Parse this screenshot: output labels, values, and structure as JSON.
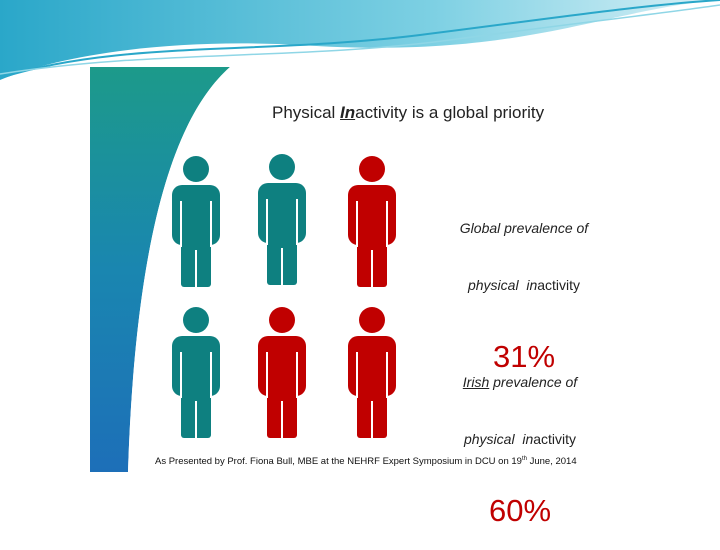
{
  "title": {
    "before": "Physical ",
    "emphasis": "In",
    "after": "activity is a global priority"
  },
  "global": {
    "label": "Global prevalence of",
    "line2_italic": "physical  in",
    "line2_rest": "activity",
    "value": "31%"
  },
  "irish": {
    "label_underlined": "Irish",
    "label_rest": " prevalence of",
    "line2_italic": "physical  in",
    "line2_rest": "activity",
    "value": "60%"
  },
  "footnote": {
    "text": "As Presented by Prof. Fiona Bull, MBE at the NEHRF Expert Symposium in DCU on 19",
    "superscript": "th",
    "after": " June, 2014"
  }
}
